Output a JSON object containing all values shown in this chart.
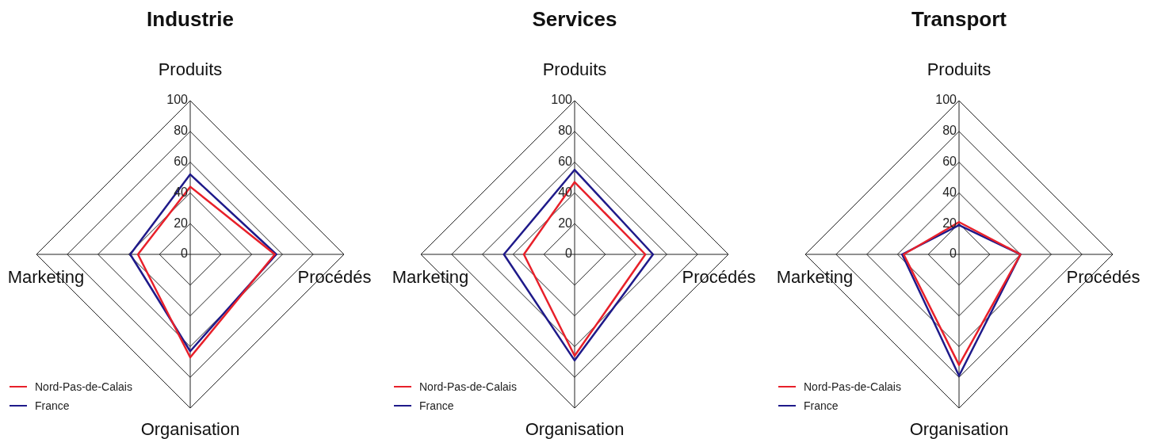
{
  "chart_data": [
    {
      "type": "radar",
      "title": "Industrie",
      "categories": [
        "Produits",
        "Procédés",
        "Organisation",
        "Marketing"
      ],
      "series": [
        {
          "name": "Nord-Pas-de-Calais",
          "color": "#e8202a",
          "values": [
            44,
            55,
            67,
            34
          ]
        },
        {
          "name": "France",
          "color": "#1f1a8a",
          "values": [
            52,
            56,
            63,
            39
          ]
        }
      ],
      "ylim": [
        0,
        100
      ],
      "yticks": [
        0,
        20,
        40,
        60,
        80,
        100
      ],
      "grid": true,
      "legend": "bottom left",
      "marker": "none"
    },
    {
      "type": "radar",
      "title": "Services",
      "categories": [
        "Produits",
        "Procédés",
        "Organisation",
        "Marketing"
      ],
      "series": [
        {
          "name": "Nord-Pas-de-Calais",
          "color": "#e8202a",
          "values": [
            47,
            46,
            66,
            33
          ]
        },
        {
          "name": "France",
          "color": "#1f1a8a",
          "values": [
            55,
            51,
            69,
            46
          ]
        }
      ],
      "ylim": [
        0,
        100
      ],
      "yticks": [
        0,
        20,
        40,
        60,
        80,
        100
      ],
      "grid": true,
      "legend": "bottom left",
      "marker": "none"
    },
    {
      "type": "radar",
      "title": "Transport",
      "categories": [
        "Produits",
        "Procédés",
        "Organisation",
        "Marketing"
      ],
      "series": [
        {
          "name": "Nord-Pas-de-Calais",
          "color": "#e8202a",
          "values": [
            21,
            40,
            72,
            36
          ]
        },
        {
          "name": "France",
          "color": "#1f1a8a",
          "values": [
            19,
            40,
            79,
            37
          ]
        }
      ],
      "ylim": [
        0,
        100
      ],
      "yticks": [
        0,
        20,
        40,
        60,
        80,
        100
      ],
      "grid": true,
      "legend": "bottom left",
      "marker": "none"
    }
  ]
}
